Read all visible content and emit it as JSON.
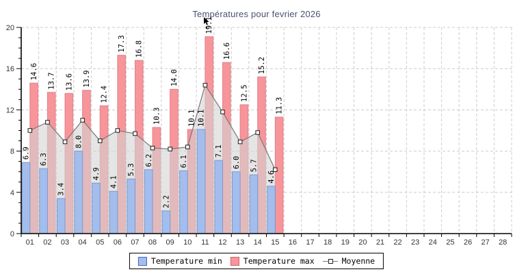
{
  "title": "Températures pour fevrier 2026",
  "legend": {
    "min_label": "Temperature min",
    "max_label": "Temperature max",
    "moyenne_label": "Moyenne"
  },
  "colors": {
    "bar_min_fill": "#a3bdec",
    "bar_min_border": "#7e98cf",
    "bar_max_fill": "#f8959a",
    "bar_max_border": "#e0818a",
    "moyenne_line": "#777777",
    "moyenne_area": "#d4d4d4",
    "grid": "#cccccc",
    "title_text": "#4a5270",
    "tick_text": "#333333"
  },
  "chart_data": {
    "type": "bar",
    "title": "Températures pour fevrier 2026",
    "categories": [
      "01",
      "02",
      "03",
      "04",
      "05",
      "06",
      "07",
      "08",
      "09",
      "10",
      "11",
      "12",
      "13",
      "14",
      "15",
      "16",
      "17",
      "18",
      "19",
      "20",
      "21",
      "22",
      "23",
      "24",
      "25",
      "26",
      "27",
      "28"
    ],
    "series": [
      {
        "name": "Temperature min",
        "type": "bar",
        "values": [
          6.9,
          6.3,
          3.4,
          8.0,
          4.9,
          4.1,
          5.3,
          6.2,
          2.2,
          6.1,
          10.1,
          7.1,
          6.0,
          5.7,
          4.6
        ]
      },
      {
        "name": "Temperature max",
        "type": "bar",
        "values": [
          14.6,
          13.7,
          13.6,
          13.9,
          12.4,
          17.3,
          16.8,
          10.3,
          14.0,
          10.1,
          19.1,
          16.6,
          12.5,
          15.2,
          11.3
        ]
      },
      {
        "name": "Moyenne",
        "type": "line-area",
        "values": [
          10.0,
          10.8,
          8.9,
          11.0,
          9.0,
          10.0,
          9.7,
          8.3,
          8.2,
          8.4,
          14.4,
          11.8,
          8.9,
          9.8,
          6.2
        ]
      }
    ],
    "xlabel": "",
    "ylabel": "",
    "ylim": [
      0,
      20
    ],
    "y_ticks": [
      0,
      4,
      8,
      12,
      16,
      20
    ],
    "y_minor_tick_step": 1,
    "grid": true,
    "data_labels": "rotated-90-above-bars",
    "legend_position": "bottom"
  }
}
